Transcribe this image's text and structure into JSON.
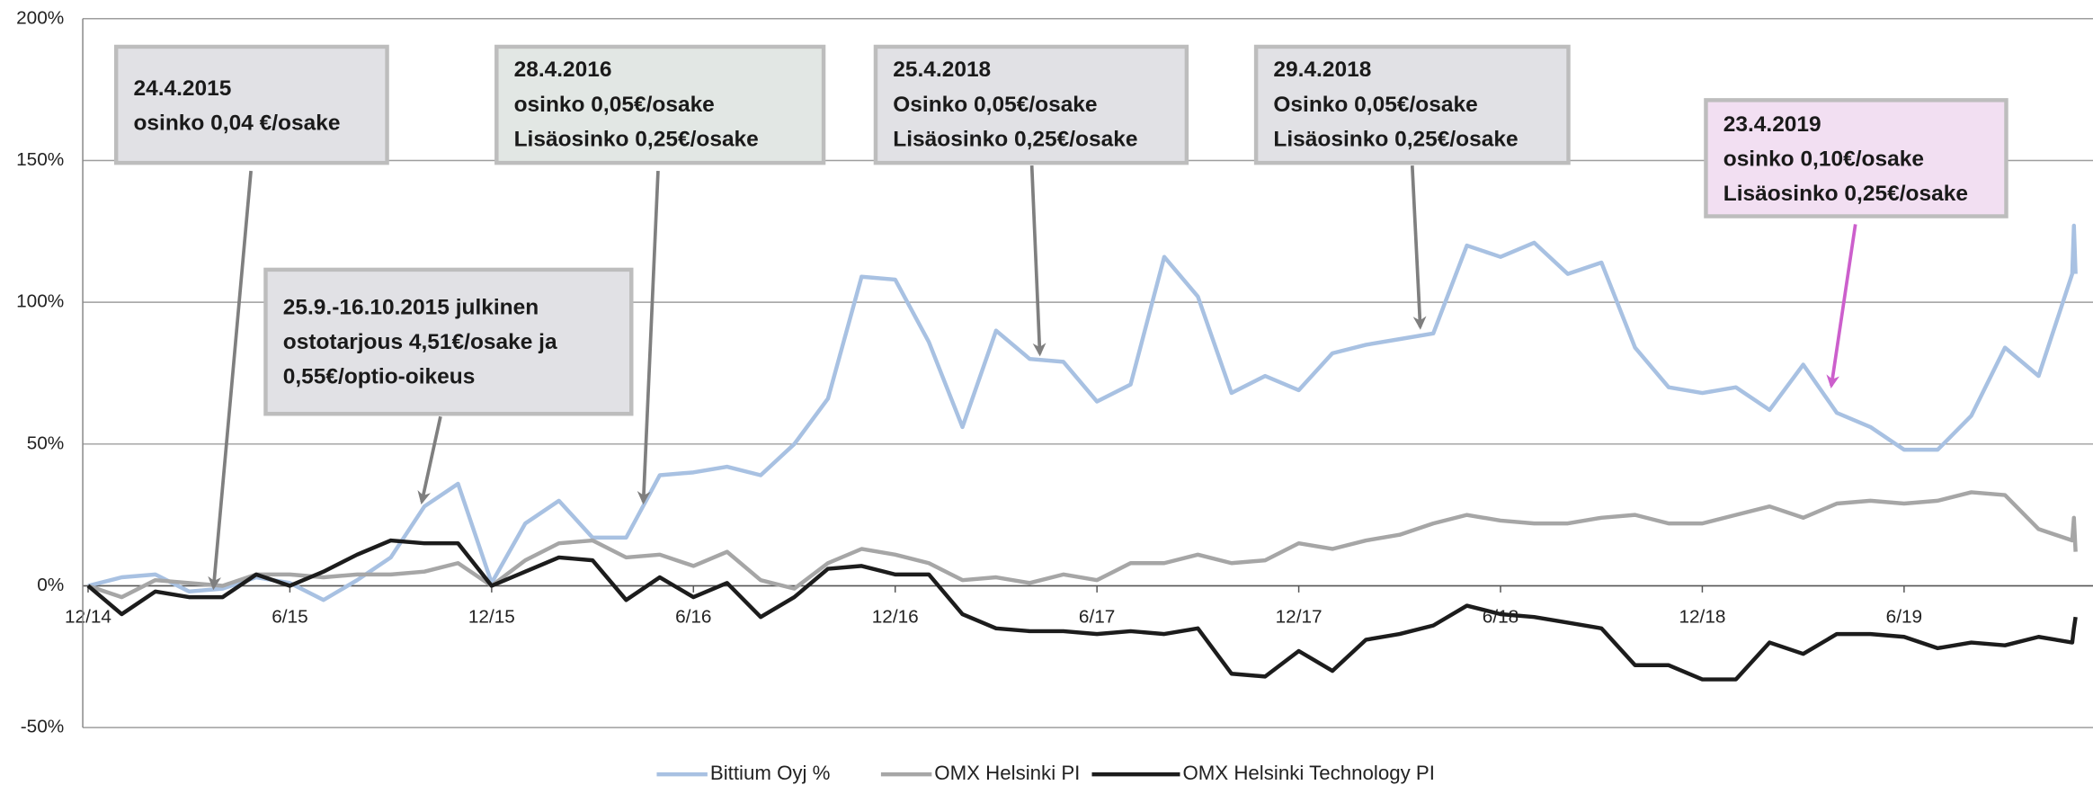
{
  "chart_data": {
    "type": "line",
    "x": [
      0,
      1,
      2,
      3,
      4,
      5,
      6,
      7,
      8,
      9,
      10,
      11,
      12,
      13,
      14,
      15,
      16,
      17,
      18,
      19,
      20,
      21,
      22,
      23,
      24,
      25,
      26,
      27,
      28,
      29,
      30,
      31,
      32,
      33,
      34,
      35,
      36,
      37,
      38,
      39,
      40,
      41,
      42,
      43,
      44,
      45,
      46,
      47,
      48,
      49,
      50,
      51,
      52,
      53,
      54,
      55,
      56,
      57,
      58,
      59,
      59.05,
      59.1
    ],
    "series": [
      {
        "name": "Bittium Oyj %",
        "color": "#a8c1e2",
        "values": [
          0,
          3,
          4,
          -2,
          -1,
          3,
          1,
          -5,
          2,
          10,
          28,
          36,
          1,
          22,
          30,
          17,
          17,
          39,
          40,
          42,
          39,
          50,
          66,
          109,
          108,
          86,
          56,
          90,
          80,
          79,
          65,
          71,
          116,
          102,
          68,
          74,
          69,
          82,
          85,
          87,
          89,
          120,
          116,
          121,
          110,
          114,
          84,
          70,
          68,
          70,
          62,
          78,
          61,
          56,
          48,
          48,
          60,
          84,
          74,
          110,
          127,
          110
        ]
      },
      {
        "name": "OMX Helsinki PI",
        "color": "#a6a6a6",
        "values": [
          0,
          -4,
          2,
          1,
          0,
          4,
          4,
          3,
          4,
          4,
          5,
          8,
          0,
          9,
          15,
          16,
          10,
          11,
          7,
          12,
          2,
          -1,
          8,
          13,
          11,
          8,
          2,
          3,
          1,
          4,
          2,
          8,
          8,
          11,
          8,
          9,
          15,
          13,
          16,
          18,
          22,
          25,
          23,
          22,
          22,
          24,
          25,
          22,
          22,
          25,
          28,
          24,
          29,
          30,
          29,
          30,
          33,
          32,
          20,
          16,
          24,
          12
        ]
      },
      {
        "name": "OMX Helsinki Technology PI",
        "color": "#1c1c1c",
        "values": [
          0,
          -10,
          -2,
          -4,
          -4,
          4,
          0,
          5,
          11,
          16,
          15,
          15,
          0,
          5,
          10,
          9,
          -5,
          3,
          -4,
          1,
          -11,
          -4,
          6,
          7,
          4,
          4,
          -10,
          -15,
          -16,
          -16,
          -17,
          -16,
          -17,
          -15,
          -31,
          -32,
          -23,
          -30,
          -19,
          -17,
          -14,
          -7,
          -10,
          -11,
          -13,
          -15,
          -28,
          -28,
          -33,
          -33,
          -20,
          -24,
          -17,
          -17,
          -18,
          -22,
          -20,
          -21,
          -18,
          -20,
          -15,
          -11
        ]
      }
    ],
    "xlim": [
      0,
      59.3
    ],
    "xticks": [
      {
        "value": 0,
        "label": "12/14"
      },
      {
        "value": 6,
        "label": "6/15"
      },
      {
        "value": 12,
        "label": "12/15"
      },
      {
        "value": 18,
        "label": "6/16"
      },
      {
        "value": 24,
        "label": "12/16"
      },
      {
        "value": 30,
        "label": "6/17"
      },
      {
        "value": 36,
        "label": "12/17"
      },
      {
        "value": 42,
        "label": "6/18"
      },
      {
        "value": 48,
        "label": "12/18"
      },
      {
        "value": 54,
        "label": "6/19"
      }
    ],
    "ylim": [
      -50,
      200
    ],
    "yticks": [
      {
        "value": -50,
        "label": "-50%"
      },
      {
        "value": 0,
        "label": "0%"
      },
      {
        "value": 50,
        "label": "50%"
      },
      {
        "value": 100,
        "label": "100%"
      },
      {
        "value": 150,
        "label": "150%"
      },
      {
        "value": 200,
        "label": "200%"
      }
    ],
    "grid": true,
    "legend": "bottom",
    "annotations": [
      {
        "lines": [
          "24.4.2015",
          "osinko 0,04 €/osake"
        ]
      },
      {
        "lines": [
          "28.4.2016",
          "osinko 0,05€/osake",
          "Lisäosinko 0,25€/osake"
        ]
      },
      {
        "lines": [
          "25.4.2018",
          "Osinko 0,05€/osake",
          "Lisäosinko 0,25€/osake"
        ]
      },
      {
        "lines": [
          "29.4.2018",
          "Osinko 0,05€/osake",
          "Lisäosinko 0,25€/osake"
        ]
      },
      {
        "lines": [
          "23.4.2019",
          "osinko 0,10€/osake",
          "Lisäosinko 0,25€/osake"
        ]
      },
      {
        "lines": [
          "25.9.-16.10.2015 julkinen",
          "ostotarjous 4,51€/osake ja",
          "0,55€/optio-oikeus"
        ]
      }
    ]
  }
}
